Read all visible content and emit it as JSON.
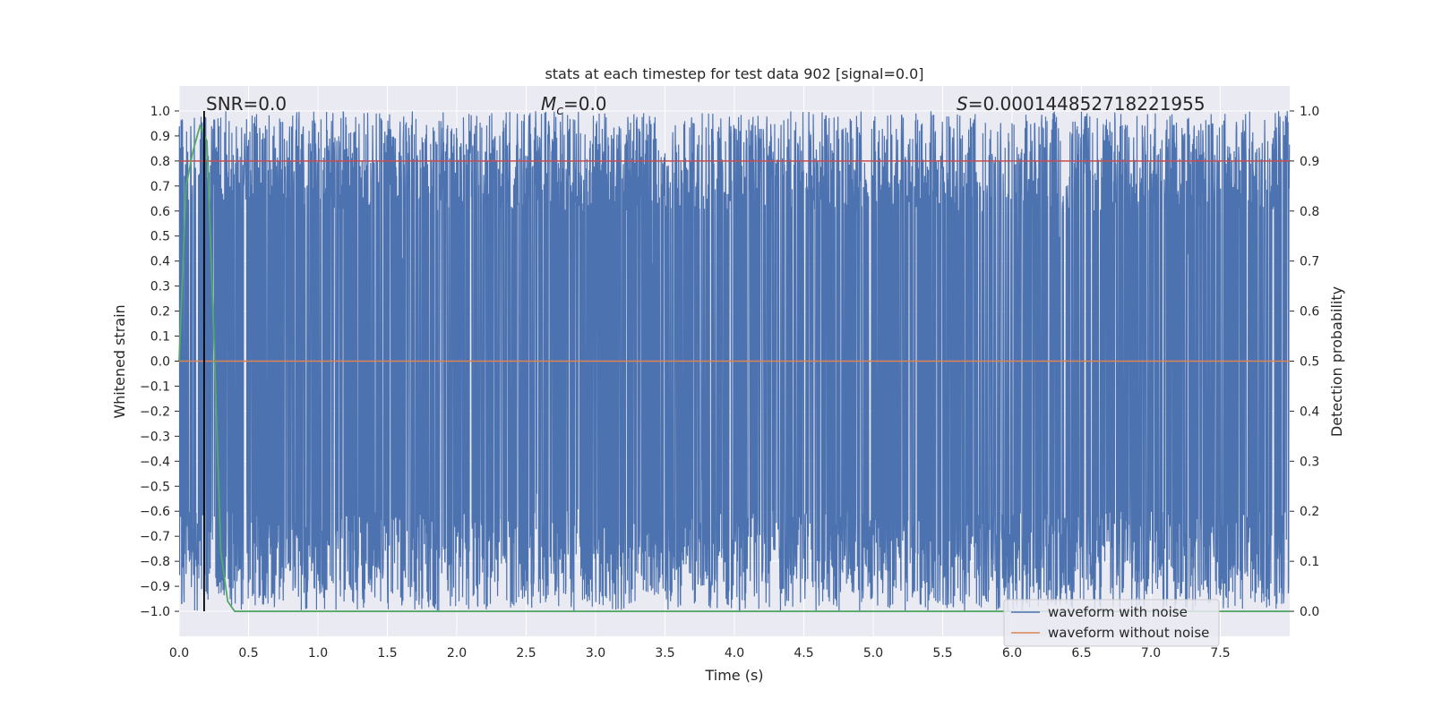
{
  "chart_data": {
    "type": "line",
    "title": "stats at each timestep for test data 902 [signal=0.0]",
    "xlabel": "Time (s)",
    "ylabel": "Whitened strain",
    "y2label": "Detection probability",
    "xlim": [
      0.0,
      8.0
    ],
    "ylim": [
      -1.1,
      1.1
    ],
    "y2lim": [
      -0.05,
      1.05
    ],
    "xticks": [
      "0.0",
      "0.5",
      "1.0",
      "1.5",
      "2.0",
      "2.5",
      "3.0",
      "3.5",
      "4.0",
      "4.5",
      "5.0",
      "5.5",
      "6.0",
      "6.5",
      "7.0",
      "7.5"
    ],
    "xtick_values": [
      0.0,
      0.5,
      1.0,
      1.5,
      2.0,
      2.5,
      3.0,
      3.5,
      4.0,
      4.5,
      5.0,
      5.5,
      6.0,
      6.5,
      7.0,
      7.5
    ],
    "yticks": [
      "1.0",
      "0.9",
      "0.8",
      "0.7",
      "0.6",
      "0.5",
      "0.4",
      "0.3",
      "0.2",
      "0.1",
      "0.0",
      "−0.1",
      "−0.2",
      "−0.3",
      "−0.4",
      "−0.5",
      "−0.6",
      "−0.7",
      "−0.8",
      "−0.9",
      "−1.0"
    ],
    "ytick_values": [
      1.0,
      0.9,
      0.8,
      0.7,
      0.6,
      0.5,
      0.4,
      0.3,
      0.2,
      0.1,
      0.0,
      -0.1,
      -0.2,
      -0.3,
      -0.4,
      -0.5,
      -0.6,
      -0.7,
      -0.8,
      -0.9,
      -1.0
    ],
    "y2ticks": [
      "1.0",
      "0.9",
      "0.8",
      "0.7",
      "0.6",
      "0.5",
      "0.4",
      "0.3",
      "0.2",
      "0.1",
      "0.0"
    ],
    "y2tick_values": [
      1.0,
      0.9,
      0.8,
      0.7,
      0.6,
      0.5,
      0.4,
      0.3,
      0.2,
      0.1,
      0.0
    ],
    "annotations": {
      "snr": "SNR=0.0",
      "mc_symbol": "M",
      "mc_sub": "c",
      "mc_value": "=0.0",
      "s_symbol": "S",
      "s_value": "=0.000144852718221955"
    },
    "series": [
      {
        "name": "waveform with noise",
        "color": "#4c72b0",
        "style": "dense noise filling approximately -1.0 to 1.0 across 0-8 s"
      },
      {
        "name": "waveform without noise",
        "color": "#dd8452",
        "x": [
          0.0,
          8.0
        ],
        "y": [
          0.0,
          0.0
        ]
      },
      {
        "color": "#55a868",
        "axis": "right",
        "x": [
          0.0,
          0.05,
          0.1,
          0.15,
          0.2,
          0.25,
          0.3,
          0.35,
          0.4,
          8.0
        ],
        "y": [
          0.5,
          0.85,
          0.92,
          0.97,
          0.94,
          0.55,
          0.12,
          0.02,
          0.0,
          0.0
        ]
      },
      {
        "color": "#c44e52",
        "axis": "right",
        "x": [
          0.0,
          8.0
        ],
        "y": [
          0.9,
          0.9
        ]
      }
    ],
    "vline": {
      "x": 0.18,
      "color": "#000000"
    },
    "grid": true,
    "legend_position": "lower-right",
    "colors": {
      "axes_bg": "#eaeaf2",
      "grid": "#ffffff",
      "noise": "#4c72b0",
      "clean": "#dd8452",
      "prob": "#55a868",
      "threshold": "#c44e52"
    }
  }
}
